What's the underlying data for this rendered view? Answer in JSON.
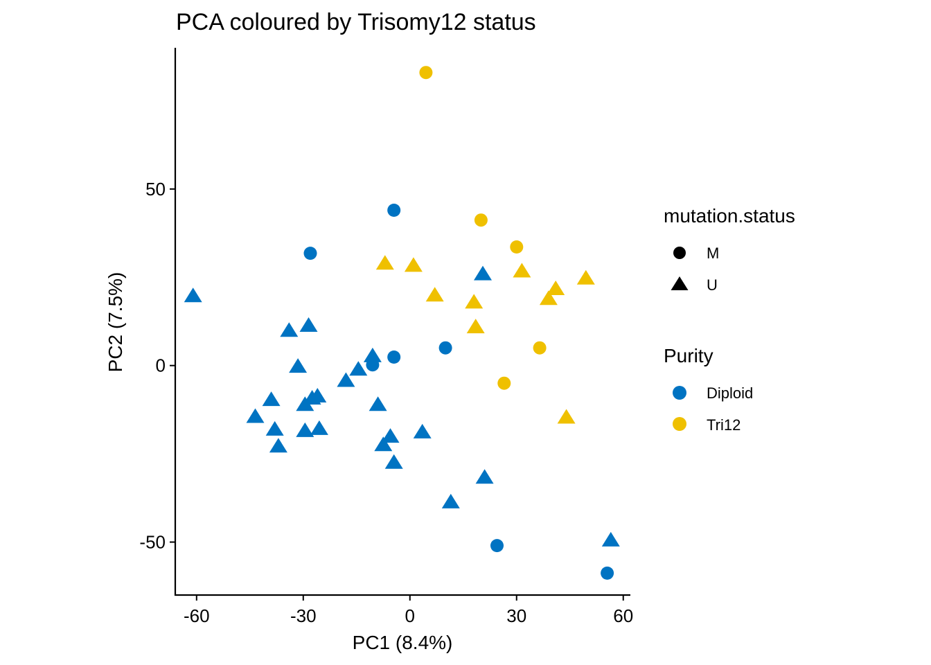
{
  "chart_data": {
    "type": "scatter",
    "title": "PCA coloured by Trisomy12 status",
    "xlabel": "PC1 (8.4%)",
    "ylabel": "PC2 (7.5%)",
    "xlim": [
      -66,
      62
    ],
    "ylim": [
      -65,
      90
    ],
    "xticks": [
      "-60",
      "-30",
      "0",
      "30",
      "60"
    ],
    "xtick_values": [
      -60,
      -30,
      0,
      30,
      60
    ],
    "yticks": [
      "50",
      "0",
      "-50"
    ],
    "ytick_values": [
      50,
      0,
      -50
    ],
    "grid": false,
    "legend_placement": "right",
    "colors": {
      "Diploid": "#0073C2",
      "Tri12": "#EFC000",
      "legend_shape": "#000000"
    },
    "legends": {
      "shape": {
        "title": "mutation.status",
        "items": [
          {
            "label": "M",
            "shape": "circle"
          },
          {
            "label": "U",
            "shape": "triangle"
          }
        ]
      },
      "color": {
        "title": "Purity",
        "items": [
          {
            "label": "Diploid"
          },
          {
            "label": "Tri12"
          }
        ]
      }
    },
    "points": [
      {
        "x": -61.0,
        "y": 19.6,
        "purity": "Diploid",
        "mutation": "U"
      },
      {
        "x": -28.0,
        "y": 31.8,
        "purity": "Diploid",
        "mutation": "M"
      },
      {
        "x": -4.5,
        "y": 44.0,
        "purity": "Diploid",
        "mutation": "M"
      },
      {
        "x": -34.0,
        "y": 9.8,
        "purity": "Diploid",
        "mutation": "U"
      },
      {
        "x": -28.5,
        "y": 11.2,
        "purity": "Diploid",
        "mutation": "U"
      },
      {
        "x": -31.5,
        "y": -0.4,
        "purity": "Diploid",
        "mutation": "U"
      },
      {
        "x": -10.5,
        "y": 2.6,
        "purity": "Diploid",
        "mutation": "U"
      },
      {
        "x": -10.5,
        "y": 0.2,
        "purity": "Diploid",
        "mutation": "M"
      },
      {
        "x": -4.5,
        "y": 2.4,
        "purity": "Diploid",
        "mutation": "M"
      },
      {
        "x": -14.5,
        "y": -1.2,
        "purity": "Diploid",
        "mutation": "U"
      },
      {
        "x": -18.0,
        "y": -4.4,
        "purity": "Diploid",
        "mutation": "U"
      },
      {
        "x": -39.0,
        "y": -9.8,
        "purity": "Diploid",
        "mutation": "U"
      },
      {
        "x": -43.5,
        "y": -14.6,
        "purity": "Diploid",
        "mutation": "U"
      },
      {
        "x": -38.0,
        "y": -18.2,
        "purity": "Diploid",
        "mutation": "U"
      },
      {
        "x": -37.0,
        "y": -23.0,
        "purity": "Diploid",
        "mutation": "U"
      },
      {
        "x": -29.5,
        "y": -11.2,
        "purity": "Diploid",
        "mutation": "U"
      },
      {
        "x": -27.5,
        "y": -9.4,
        "purity": "Diploid",
        "mutation": "U"
      },
      {
        "x": -26.0,
        "y": -8.8,
        "purity": "Diploid",
        "mutation": "U"
      },
      {
        "x": -29.5,
        "y": -18.6,
        "purity": "Diploid",
        "mutation": "U"
      },
      {
        "x": -25.5,
        "y": -18.0,
        "purity": "Diploid",
        "mutation": "U"
      },
      {
        "x": -9.0,
        "y": -11.2,
        "purity": "Diploid",
        "mutation": "U"
      },
      {
        "x": -5.5,
        "y": -20.2,
        "purity": "Diploid",
        "mutation": "U"
      },
      {
        "x": -7.5,
        "y": -22.6,
        "purity": "Diploid",
        "mutation": "U"
      },
      {
        "x": -4.5,
        "y": -27.6,
        "purity": "Diploid",
        "mutation": "U"
      },
      {
        "x": 3.5,
        "y": -19.0,
        "purity": "Diploid",
        "mutation": "U"
      },
      {
        "x": 10.0,
        "y": 5.0,
        "purity": "Diploid",
        "mutation": "M"
      },
      {
        "x": 20.5,
        "y": 25.8,
        "purity": "Diploid",
        "mutation": "U"
      },
      {
        "x": 21.0,
        "y": -31.8,
        "purity": "Diploid",
        "mutation": "U"
      },
      {
        "x": 11.5,
        "y": -38.8,
        "purity": "Diploid",
        "mutation": "U"
      },
      {
        "x": 24.5,
        "y": -51.0,
        "purity": "Diploid",
        "mutation": "M"
      },
      {
        "x": 56.5,
        "y": -49.6,
        "purity": "Diploid",
        "mutation": "U"
      },
      {
        "x": 55.5,
        "y": -58.8,
        "purity": "Diploid",
        "mutation": "M"
      },
      {
        "x": 4.5,
        "y": 83.0,
        "purity": "Tri12",
        "mutation": "M"
      },
      {
        "x": 20.0,
        "y": 41.2,
        "purity": "Tri12",
        "mutation": "M"
      },
      {
        "x": 30.0,
        "y": 33.6,
        "purity": "Tri12",
        "mutation": "M"
      },
      {
        "x": -7.0,
        "y": 28.8,
        "purity": "Tri12",
        "mutation": "U"
      },
      {
        "x": 1.0,
        "y": 28.2,
        "purity": "Tri12",
        "mutation": "U"
      },
      {
        "x": 31.5,
        "y": 26.6,
        "purity": "Tri12",
        "mutation": "U"
      },
      {
        "x": 7.0,
        "y": 19.8,
        "purity": "Tri12",
        "mutation": "U"
      },
      {
        "x": 18.0,
        "y": 17.8,
        "purity": "Tri12",
        "mutation": "U"
      },
      {
        "x": 18.5,
        "y": 10.8,
        "purity": "Tri12",
        "mutation": "U"
      },
      {
        "x": 39.0,
        "y": 18.8,
        "purity": "Tri12",
        "mutation": "U"
      },
      {
        "x": 41.0,
        "y": 21.6,
        "purity": "Tri12",
        "mutation": "U"
      },
      {
        "x": 49.5,
        "y": 24.6,
        "purity": "Tri12",
        "mutation": "U"
      },
      {
        "x": 36.5,
        "y": 5.0,
        "purity": "Tri12",
        "mutation": "M"
      },
      {
        "x": 26.5,
        "y": -5.0,
        "purity": "Tri12",
        "mutation": "M"
      },
      {
        "x": 44.0,
        "y": -14.8,
        "purity": "Tri12",
        "mutation": "U"
      }
    ]
  }
}
